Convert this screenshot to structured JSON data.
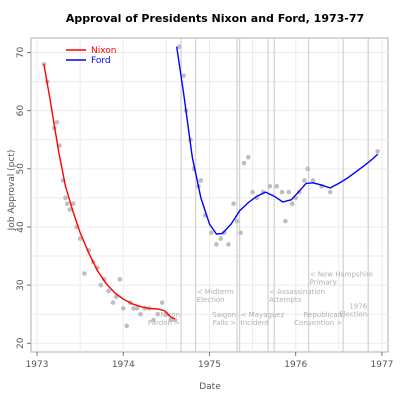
{
  "chart_data": {
    "type": "scatter",
    "title": "Approval of Presidents Nixon and Ford, 1973-77",
    "xlabel": "Date",
    "ylabel": "Job Approval (pct)",
    "xlim": [
      1972.93,
      1977.07
    ],
    "ylim": [
      18.5,
      72.5
    ],
    "x_ticks": [
      {
        "value": 1973,
        "label": "1973"
      },
      {
        "value": 1974,
        "label": "1974"
      },
      {
        "value": 1975,
        "label": "1975"
      },
      {
        "value": 1976,
        "label": "1976"
      },
      {
        "value": 1977,
        "label": "1977"
      }
    ],
    "y_ticks": [
      {
        "value": 20,
        "label": "20"
      },
      {
        "value": 30,
        "label": "30"
      },
      {
        "value": 40,
        "label": "40"
      },
      {
        "value": 50,
        "label": "50"
      },
      {
        "value": 60,
        "label": "60"
      },
      {
        "value": 70,
        "label": "70"
      }
    ],
    "grid": true,
    "legend_position": "top-left",
    "legend": [
      {
        "label": "Nixon",
        "color": "#ff0000"
      },
      {
        "label": "Ford",
        "color": "#0000ff"
      }
    ],
    "point_color": "#bebebe",
    "grid_color": "#ebebeb",
    "event_line_color": "#c8c8c8",
    "series": [
      {
        "name": "Nixon",
        "color": "#ff0000",
        "points": [
          [
            1973.08,
            68
          ],
          [
            1973.12,
            65
          ],
          [
            1973.2,
            57
          ],
          [
            1973.23,
            58
          ],
          [
            1973.26,
            54
          ],
          [
            1973.3,
            48
          ],
          [
            1973.33,
            45
          ],
          [
            1973.35,
            44
          ],
          [
            1973.38,
            43
          ],
          [
            1973.42,
            44
          ],
          [
            1973.46,
            40
          ],
          [
            1973.5,
            38
          ],
          [
            1973.55,
            32
          ],
          [
            1973.6,
            36
          ],
          [
            1973.65,
            34
          ],
          [
            1973.7,
            33
          ],
          [
            1973.74,
            30
          ],
          [
            1973.78,
            31
          ],
          [
            1973.83,
            29
          ],
          [
            1973.88,
            27
          ],
          [
            1973.92,
            28
          ],
          [
            1973.96,
            31
          ],
          [
            1974.0,
            26
          ],
          [
            1974.04,
            23
          ],
          [
            1974.08,
            27
          ],
          [
            1974.12,
            26
          ],
          [
            1974.16,
            26
          ],
          [
            1974.2,
            25
          ],
          [
            1974.25,
            26
          ],
          [
            1974.3,
            26
          ],
          [
            1974.35,
            24
          ],
          [
            1974.4,
            25
          ],
          [
            1974.45,
            27
          ],
          [
            1974.5,
            25
          ],
          [
            1974.55,
            24
          ],
          [
            1974.6,
            24
          ]
        ],
        "trend": [
          [
            1973.08,
            68
          ],
          [
            1973.15,
            62
          ],
          [
            1973.25,
            53
          ],
          [
            1973.33,
            47
          ],
          [
            1973.42,
            42.5
          ],
          [
            1973.5,
            39
          ],
          [
            1973.6,
            35.5
          ],
          [
            1973.7,
            32.5
          ],
          [
            1973.8,
            30.3
          ],
          [
            1973.9,
            28.7
          ],
          [
            1974.0,
            27.6
          ],
          [
            1974.1,
            26.8
          ],
          [
            1974.2,
            26.3
          ],
          [
            1974.3,
            26
          ],
          [
            1974.4,
            25.9
          ],
          [
            1974.48,
            25.6
          ],
          [
            1974.55,
            24.5
          ],
          [
            1974.6,
            24.2
          ]
        ]
      },
      {
        "name": "Ford",
        "color": "#0000ff",
        "points": [
          [
            1974.65,
            71
          ],
          [
            1974.7,
            66
          ],
          [
            1974.73,
            60
          ],
          [
            1974.78,
            55
          ],
          [
            1974.82,
            50
          ],
          [
            1974.87,
            47
          ],
          [
            1974.9,
            48
          ],
          [
            1974.95,
            42
          ],
          [
            1975.02,
            39
          ],
          [
            1975.08,
            37
          ],
          [
            1975.13,
            38
          ],
          [
            1975.17,
            39
          ],
          [
            1975.22,
            37
          ],
          [
            1975.28,
            44
          ],
          [
            1975.32,
            41
          ],
          [
            1975.36,
            39
          ],
          [
            1975.4,
            51
          ],
          [
            1975.45,
            52
          ],
          [
            1975.5,
            46
          ],
          [
            1975.55,
            45
          ],
          [
            1975.62,
            46
          ],
          [
            1975.7,
            47
          ],
          [
            1975.78,
            47
          ],
          [
            1975.84,
            46
          ],
          [
            1975.88,
            41
          ],
          [
            1975.92,
            46
          ],
          [
            1975.96,
            44
          ],
          [
            1976.0,
            45
          ],
          [
            1976.04,
            46
          ],
          [
            1976.1,
            48
          ],
          [
            1976.14,
            50
          ],
          [
            1976.2,
            48
          ],
          [
            1976.3,
            47
          ],
          [
            1976.4,
            46
          ],
          [
            1976.95,
            53
          ]
        ],
        "trend": [
          [
            1974.62,
            71
          ],
          [
            1974.7,
            63
          ],
          [
            1974.8,
            52
          ],
          [
            1974.9,
            45
          ],
          [
            1975.0,
            40.5
          ],
          [
            1975.08,
            38.8
          ],
          [
            1975.15,
            38.9
          ],
          [
            1975.25,
            40.5
          ],
          [
            1975.35,
            42.8
          ],
          [
            1975.45,
            44.2
          ],
          [
            1975.55,
            45.3
          ],
          [
            1975.65,
            46
          ],
          [
            1975.75,
            45.3
          ],
          [
            1975.85,
            44.3
          ],
          [
            1975.95,
            44.7
          ],
          [
            1976.05,
            46.3
          ],
          [
            1976.12,
            47.5
          ],
          [
            1976.2,
            47.6
          ],
          [
            1976.3,
            47.2
          ],
          [
            1976.4,
            46.7
          ],
          [
            1976.5,
            47.5
          ],
          [
            1976.6,
            48.4
          ],
          [
            1976.7,
            49.5
          ],
          [
            1976.8,
            50.6
          ],
          [
            1976.9,
            51.8
          ],
          [
            1976.95,
            52.5
          ]
        ]
      }
    ],
    "events": [
      {
        "x": 1974.67,
        "lines": [
          "Nixon",
          "Pardon >"
        ],
        "y": 24.5,
        "align": "end"
      },
      {
        "x": 1974.84,
        "lines": [
          "< Midterm",
          "Election"
        ],
        "y": 28.5,
        "align": "start"
      },
      {
        "x": 1975.32,
        "lines": [
          "Saigon",
          "Falls >"
        ],
        "y": 24.5,
        "align": "end"
      },
      {
        "x": 1975.35,
        "lines": [
          "< Mayaguez",
          "Incident"
        ],
        "y": 24.5,
        "align": "start"
      },
      {
        "x": 1975.68,
        "lines": [
          "< Assassination",
          "Attempts"
        ],
        "y": 28.5,
        "align": "start"
      },
      {
        "x": 1975.75,
        "lines": []
      },
      {
        "x": 1976.15,
        "lines": [
          "< New Hampshire",
          "Primary"
        ],
        "y": 31.5,
        "align": "start"
      },
      {
        "x": 1976.55,
        "lines": [
          "Republican",
          "Convention >"
        ],
        "y": 24.5,
        "align": "end"
      },
      {
        "x": 1976.84,
        "lines": [
          "1976",
          "Election"
        ],
        "y": 26.0,
        "align": "end"
      }
    ]
  }
}
